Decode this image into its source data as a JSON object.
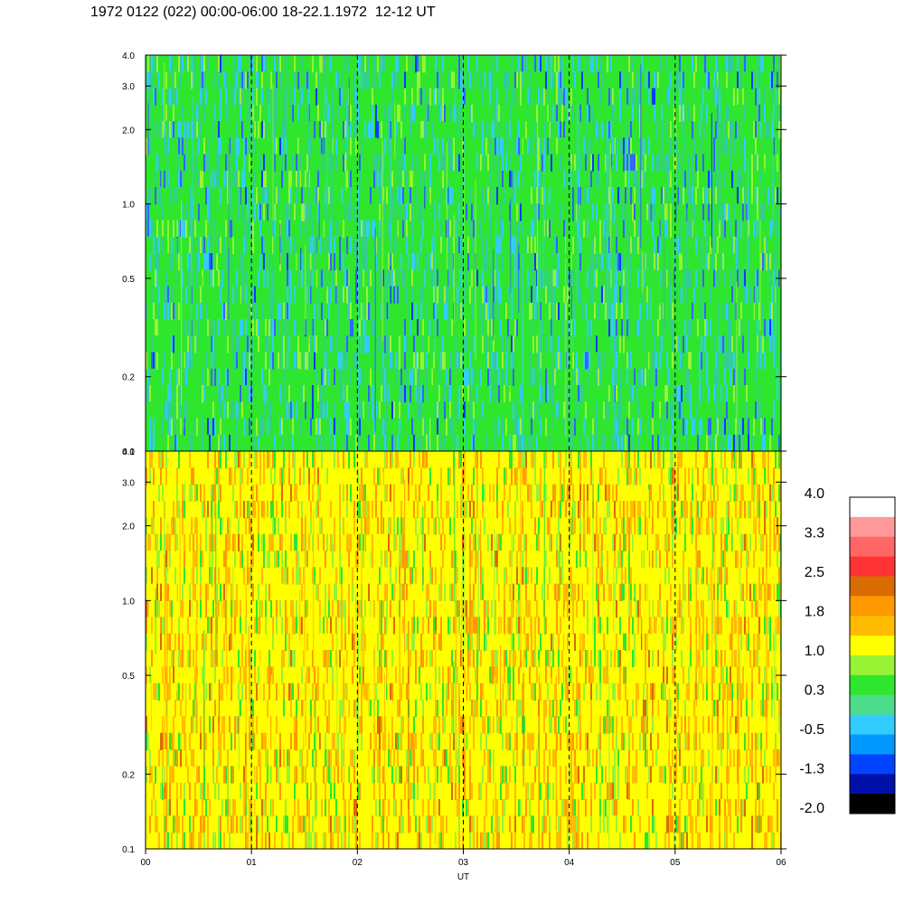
{
  "title": "1972 0122 (022) 00:00-06:00 18-22.1.1972  12-12 UT",
  "chart_data": {
    "type": "heatmap",
    "panels": [
      {
        "name": "",
        "y_scale": "log",
        "ylim": [
          0.1,
          4.0
        ],
        "yticks": [
          "0.1",
          "0.2",
          "0.5",
          "1.0",
          "2.0",
          "3.0",
          "4.0"
        ],
        "ytick_values": [
          0.1,
          0.2,
          0.5,
          1.0,
          2.0,
          3.0,
          4.0
        ],
        "colors": [
          "#2ee62e",
          "#33cc99",
          "#3366ff",
          "#33ccff",
          "#99f233",
          "#0a3cff"
        ],
        "weights": [
          0.42,
          0.25,
          0.06,
          0.15,
          0.1,
          0.02
        ]
      },
      {
        "name": "",
        "y_scale": "log",
        "ylim": [
          0.1,
          4.0
        ],
        "yticks": [
          "0.1",
          "0.2",
          "0.5",
          "1.0",
          "2.0",
          "3.0",
          "4.0"
        ],
        "ytick_values": [
          0.1,
          0.2,
          0.5,
          1.0,
          2.0,
          3.0,
          4.0
        ],
        "colors": [
          "#ffff00",
          "#ffbb00",
          "#ff9900",
          "#99f233",
          "#2ee62e",
          "#d96c00"
        ],
        "weights": [
          0.38,
          0.25,
          0.12,
          0.14,
          0.08,
          0.03
        ]
      }
    ],
    "x": {
      "label": "UT",
      "ticks": [
        "00",
        "01",
        "02",
        "03",
        "04",
        "05",
        "06"
      ],
      "tick_values": [
        0,
        1,
        2,
        3,
        4,
        5,
        6
      ],
      "xlim": [
        0,
        6
      ],
      "dashed_markers": [
        1,
        2,
        3,
        4,
        5
      ]
    },
    "colorbar": {
      "labels": [
        "4.0",
        "3.3",
        "2.5",
        "1.8",
        "1.0",
        "0.3",
        "-0.5",
        "-1.3",
        "-2.0"
      ],
      "colors": [
        "#ffffff",
        "#ff9999",
        "#ff6666",
        "#ff3333",
        "#d96c00",
        "#ff9900",
        "#ffbb00",
        "#ffff00",
        "#99f233",
        "#2ee62e",
        "#4ddb8c",
        "#33ccff",
        "#0099ff",
        "#0044ff",
        "#0011aa",
        "#000000"
      ]
    }
  }
}
